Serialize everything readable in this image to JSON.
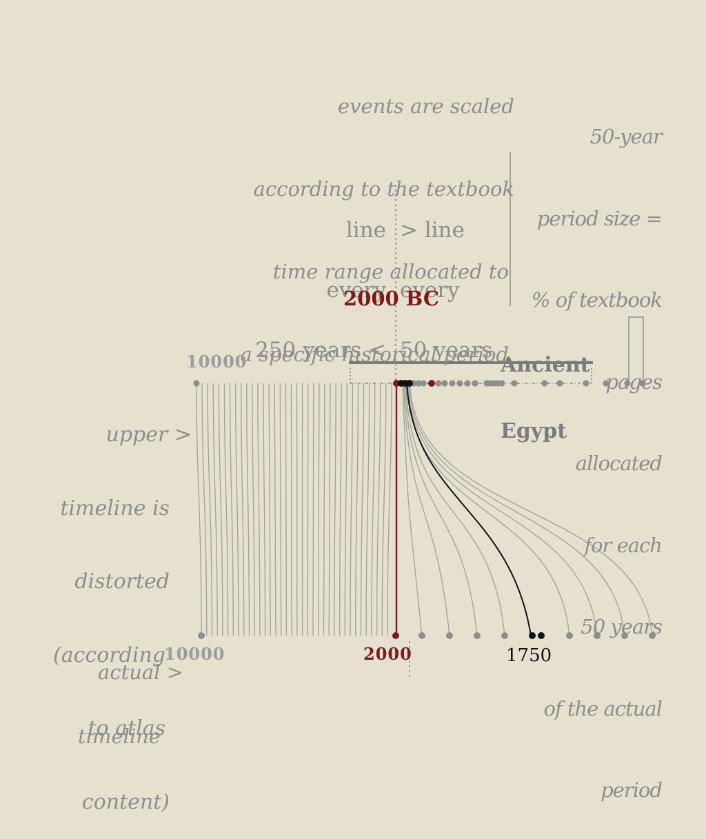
{
  "annotations": {
    "events_note": [
      "events are scaled",
      "according to the textbook",
      "time range allocated to",
      "a specific historical period"
    ],
    "period_note": [
      "50-year",
      "period size =",
      "% of textbook",
      "pages",
      "allocated",
      "for each",
      "50 years",
      "of the actual",
      "period"
    ],
    "line_left": [
      "line",
      "every",
      "250 years <"
    ],
    "line_right": [
      "> line",
      "every",
      "50 years"
    ],
    "upper_note": [
      "upper >",
      "timeline is",
      "distorted",
      "(according",
      "to atlas",
      "content)"
    ],
    "actual_note": [
      "actual >",
      "timeline"
    ]
  },
  "labels": {
    "bc_2000": "2000 BC",
    "ancient_egypt": [
      "Ancient",
      "Egypt"
    ],
    "upper_10000": "10000",
    "lower_10000": "10000",
    "lower_2000": "2000",
    "lower_1750": "1750"
  },
  "colors": {
    "background": "#e6e1cf",
    "text_gray": "#8a8a88",
    "line_gray": "#a3a29c",
    "dark_red": "#7a1a1f",
    "black": "#111111",
    "egypt_bar": "#7d7b79"
  }
}
